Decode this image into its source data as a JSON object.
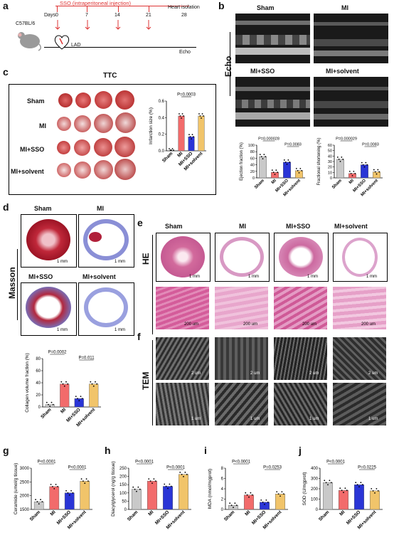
{
  "panels": {
    "a": {
      "label": "a",
      "mouse": "C57BL/6",
      "days_label": "Days",
      "treatment": "SSO (intraperitoneal injection)",
      "days": [
        "0",
        "7",
        "14",
        "21",
        "28"
      ],
      "heart_isolation": "Heart isolation",
      "lad": "LAD",
      "echo": "Echo"
    },
    "b": {
      "label": "b",
      "side_label": "Echo",
      "groups": [
        "Sham",
        "MI",
        "MI+SSO",
        "MI+solvent"
      ]
    },
    "c": {
      "label": "c",
      "title": "TTC",
      "rows": [
        "Sham",
        "MI",
        "MI+SSO",
        "MI+solvent"
      ]
    },
    "d": {
      "label": "d",
      "side_label": "Masson",
      "groups": [
        "Sham",
        "MI",
        "MI+SSO",
        "MI+solvent"
      ],
      "scale": "1 mm"
    },
    "e": {
      "label": "e",
      "side_label": "HE",
      "groups": [
        "Sham",
        "MI",
        "MI+SSO",
        "MI+solvent"
      ],
      "scale_top": "1 mm",
      "scale_bottom": "200 um"
    },
    "f": {
      "label": "f",
      "side_label": "TEM",
      "scale_top": "2 um",
      "scale_bottom": "1 um"
    },
    "g": {
      "label": "g"
    },
    "h": {
      "label": "h"
    },
    "i": {
      "label": "i"
    },
    "j": {
      "label": "j"
    }
  },
  "colors": {
    "sham": "#c9c9c9",
    "mi": "#f26b6b",
    "mi_sso": "#2a35d6",
    "mi_solvent": "#f1c46a"
  },
  "chart_data": [
    {
      "id": "infarction",
      "type": "bar",
      "categories": [
        "Sham",
        "MI",
        "MI+SSO",
        "MI+solvent"
      ],
      "values": [
        0,
        0.42,
        0.17,
        0.42
      ],
      "ylabel": "Infarction size (%)",
      "ylim": [
        0,
        0.6
      ],
      "yticks": [
        "0.0",
        "0.2",
        "0.4",
        "0.6"
      ],
      "annotations": [
        "P=0.0003"
      ]
    },
    {
      "id": "ef",
      "type": "bar",
      "categories": [
        "Sham",
        "MI",
        "MI+SSO",
        "MI+solvent"
      ],
      "values": [
        65,
        17,
        48,
        22
      ],
      "ylabel": "Ejection fraction (%)",
      "ylim": [
        0,
        100
      ],
      "yticks": [
        "0",
        "20",
        "40",
        "60",
        "80",
        "100"
      ],
      "annotations": [
        "P=0.000028",
        "P=0.0083"
      ]
    },
    {
      "id": "fs",
      "type": "bar",
      "categories": [
        "Sham",
        "MI",
        "MI+SSO",
        "MI+solvent"
      ],
      "values": [
        34,
        8,
        24,
        11
      ],
      "ylabel": "Fractional shortening (%)",
      "ylim": [
        0,
        60
      ],
      "yticks": [
        "0",
        "10",
        "20",
        "30",
        "40",
        "50",
        "60"
      ],
      "annotations": [
        "P=0.000029",
        "P=0.0083"
      ]
    },
    {
      "id": "collagen",
      "type": "bar",
      "categories": [
        "Sham",
        "MI",
        "MI+SSO",
        "MI+solvent"
      ],
      "values": [
        4,
        38,
        14,
        38
      ],
      "ylabel": "Collagen volume fraction (%)",
      "ylim": [
        0,
        80
      ],
      "yticks": [
        "0",
        "20",
        "40",
        "60",
        "80"
      ],
      "annotations": [
        "P=0.0002",
        "P=0.011"
      ]
    },
    {
      "id": "ceramide",
      "type": "bar",
      "categories": [
        "Sham",
        "MI",
        "MI+SSO",
        "MI+solvent"
      ],
      "values": [
        1780,
        2330,
        2100,
        2530
      ],
      "ylabel": "Ceramide (umol/g tissue)",
      "ylim": [
        1500,
        3000
      ],
      "yticks": [
        "1500",
        "2000",
        "2500",
        "3000"
      ],
      "annotations": [
        "P<0.0001",
        "P<0.0001"
      ]
    },
    {
      "id": "dag",
      "type": "bar",
      "categories": [
        "Sham",
        "MI",
        "MI+SSO",
        "MI+solvent"
      ],
      "values": [
        122,
        172,
        140,
        212
      ],
      "ylabel": "Diacylglycerol (ng/g tissue)",
      "ylim": [
        0,
        250
      ],
      "yticks": [
        "0",
        "50",
        "100",
        "150",
        "200",
        "250"
      ],
      "annotations": [
        "P<0.0001",
        "P<0.0001"
      ]
    },
    {
      "id": "mda",
      "type": "bar",
      "categories": [
        "Sham",
        "MI",
        "MI+SSO",
        "MI+solvent"
      ],
      "values": [
        0.8,
        2.8,
        1.4,
        3.0
      ],
      "ylabel": "MDA (nmol/mgprot)",
      "ylim": [
        0,
        8
      ],
      "yticks": [
        "0",
        "2",
        "4",
        "6",
        "8"
      ],
      "annotations": [
        "P<0.0001",
        "P=0.0253"
      ]
    },
    {
      "id": "sod",
      "type": "bar",
      "categories": [
        "Sham",
        "MI",
        "MI+SSO",
        "MI+solvent"
      ],
      "values": [
        260,
        185,
        240,
        180
      ],
      "ylabel": "SOD (U/mgprot)",
      "ylim": [
        0,
        400
      ],
      "yticks": [
        "0",
        "100",
        "200",
        "300",
        "400"
      ],
      "annotations": [
        "P<0.0001",
        "P=0.0225"
      ]
    }
  ]
}
